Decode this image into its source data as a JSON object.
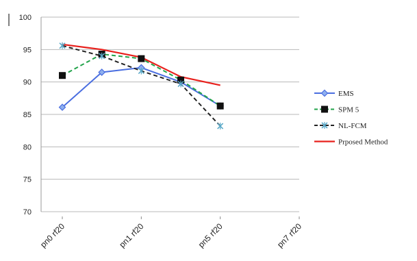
{
  "chart_data": {
    "type": "line",
    "title": "",
    "xlabel": "",
    "ylabel": "",
    "categories": [
      "pn0 rf20",
      "pn1 rf20",
      "pn5 rf20",
      "pn7 rf20"
    ],
    "x_points": [
      0,
      1,
      2,
      3,
      4,
      5,
      6
    ],
    "ylim": [
      70,
      100
    ],
    "yticks": [
      "70",
      "75",
      "80",
      "85",
      "90",
      "95",
      "100"
    ],
    "grid": "horizontal",
    "legend_position": "right",
    "series": [
      {
        "name": "EMS",
        "color": "#4a6ee0",
        "marker": "diamond",
        "dash": "solid",
        "x": [
          0,
          1,
          2,
          3,
          4
        ],
        "values": [
          86.1,
          91.5,
          92.2,
          90.0,
          86.3
        ]
      },
      {
        "name": "SPM 5",
        "color": "#22a34a",
        "marker": "square",
        "dash": "dashed",
        "x": [
          0,
          1,
          2,
          3,
          4
        ],
        "values": [
          91.0,
          94.3,
          93.6,
          90.3,
          86.3
        ]
      },
      {
        "name": "NL-FCM",
        "color": "#222222",
        "marker": "star",
        "dash": "dashed",
        "x": [
          0,
          1,
          2,
          3,
          4
        ],
        "values": [
          95.6,
          94.0,
          91.7,
          89.7,
          83.2
        ]
      },
      {
        "name": "Prposed Method",
        "color": "#e8201c",
        "marker": "none",
        "dash": "solid",
        "x": [
          0,
          1,
          2,
          3,
          4
        ],
        "values": [
          95.8,
          95.0,
          93.8,
          90.8,
          89.5
        ]
      }
    ]
  }
}
